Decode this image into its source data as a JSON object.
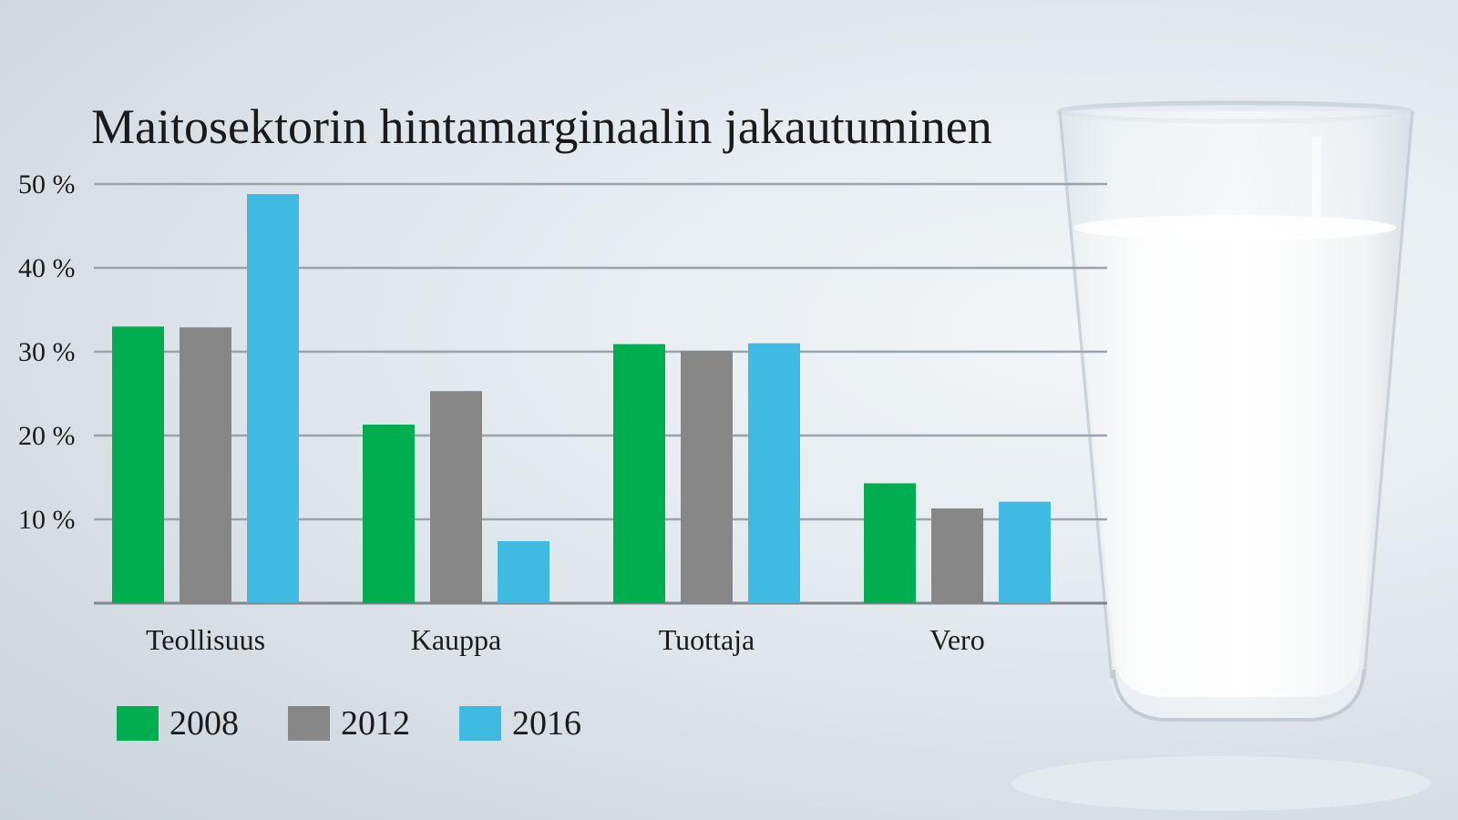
{
  "chart_data": {
    "type": "bar",
    "title": "Maitosektorin hintamarginaalin jakautuminen",
    "categories": [
      "Teollisuus",
      "Kauppa",
      "Tuottaja",
      "Vero"
    ],
    "series": [
      {
        "name": "2008",
        "color": "#00ad4f",
        "values": [
          33,
          21.3,
          30.9,
          14.3
        ]
      },
      {
        "name": "2012",
        "color": "#878787",
        "values": [
          32.9,
          25.3,
          30.1,
          11.3
        ]
      },
      {
        "name": "2016",
        "color": "#3fbbe3",
        "values": [
          48.8,
          7.4,
          31,
          12.1
        ]
      }
    ],
    "y_ticks": [
      10,
      20,
      30,
      40,
      50
    ],
    "y_tick_labels": [
      "10 %",
      "20 %",
      "30 %",
      "40 %",
      "50 %"
    ],
    "ylim": [
      0,
      50
    ],
    "grid": true,
    "legend": "bottom-left",
    "xlabel": "",
    "ylabel": ""
  },
  "photo": {
    "description_icon": "milk-glass-icon"
  }
}
